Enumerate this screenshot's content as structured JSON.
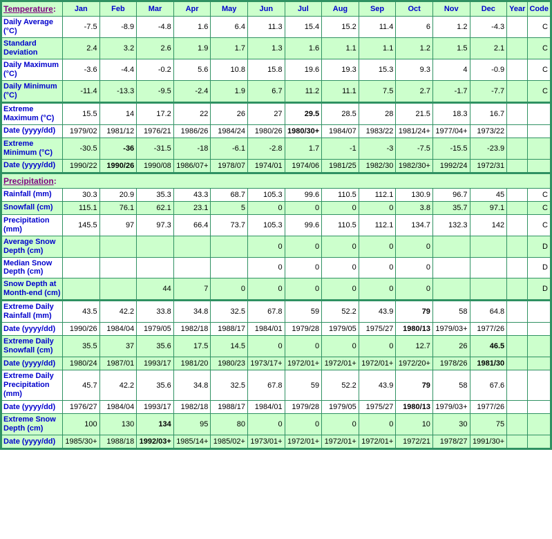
{
  "colors": {
    "cell_green": "#ccffcc",
    "grid_green": "#2f9162",
    "label_blue": "#0000cc",
    "section_purple": "#800080"
  },
  "header": {
    "section_title": "Temperature",
    "section_colon": ":",
    "months": [
      "Jan",
      "Feb",
      "Mar",
      "Apr",
      "May",
      "Jun",
      "Jul",
      "Aug",
      "Sep",
      "Oct",
      "Nov",
      "Dec"
    ],
    "year_label": "Year",
    "code_label": "Code"
  },
  "rows": [
    {
      "label": "Daily Average (°C)",
      "shade": "white",
      "thick": false,
      "values": [
        "-7.5",
        "-8.9",
        "-4.8",
        "1.6",
        "6.4",
        "11.3",
        "15.4",
        "15.2",
        "11.4",
        "6",
        "1.2",
        "-4.3"
      ],
      "year": "",
      "code": "C",
      "bold_cols": []
    },
    {
      "label": "Standard Deviation",
      "shade": "green",
      "thick": false,
      "values": [
        "2.4",
        "3.2",
        "2.6",
        "1.9",
        "1.7",
        "1.3",
        "1.6",
        "1.1",
        "1.1",
        "1.2",
        "1.5",
        "2.1"
      ],
      "year": "",
      "code": "C",
      "bold_cols": []
    },
    {
      "label": "Daily Maximum (°C)",
      "shade": "white",
      "thick": false,
      "values": [
        "-3.6",
        "-4.4",
        "-0.2",
        "5.6",
        "10.8",
        "15.8",
        "19.6",
        "19.3",
        "15.3",
        "9.3",
        "4",
        "-0.9"
      ],
      "year": "",
      "code": "C",
      "bold_cols": []
    },
    {
      "label": "Daily Minimum (°C)",
      "shade": "green",
      "thick": false,
      "values": [
        "-11.4",
        "-13.3",
        "-9.5",
        "-2.4",
        "1.9",
        "6.7",
        "11.2",
        "11.1",
        "7.5",
        "2.7",
        "-1.7",
        "-7.7"
      ],
      "year": "",
      "code": "C",
      "bold_cols": []
    },
    {
      "label": "Extreme Maximum (°C)",
      "shade": "white",
      "thick": true,
      "values": [
        "15.5",
        "14",
        "17.2",
        "22",
        "26",
        "27",
        "29.5",
        "28.5",
        "28",
        "21.5",
        "18.3",
        "16.7"
      ],
      "year": "",
      "code": "",
      "bold_cols": [
        6
      ]
    },
    {
      "label": "Date (yyyy/dd)",
      "shade": "white",
      "thick": false,
      "values": [
        "1979/02",
        "1981/12",
        "1976/21",
        "1986/26",
        "1984/24",
        "1980/26",
        "1980/30+",
        "1984/07",
        "1983/22",
        "1981/24+",
        "1977/04+",
        "1973/22"
      ],
      "year": "",
      "code": "",
      "bold_cols": [
        6
      ]
    },
    {
      "label": "Extreme Minimum (°C)",
      "shade": "green",
      "thick": false,
      "values": [
        "-30.5",
        "-36",
        "-31.5",
        "-18",
        "-6.1",
        "-2.8",
        "1.7",
        "-1",
        "-3",
        "-7.5",
        "-15.5",
        "-23.9"
      ],
      "year": "",
      "code": "",
      "bold_cols": [
        1
      ]
    },
    {
      "label": "Date (yyyy/dd)",
      "shade": "green",
      "thick": false,
      "values": [
        "1990/22",
        "1990/26",
        "1990/08",
        "1986/07+",
        "1978/07",
        "1974/01",
        "1974/06",
        "1981/25",
        "1982/30",
        "1982/30+",
        "1992/24",
        "1972/31"
      ],
      "year": "",
      "code": "",
      "bold_cols": [
        1
      ]
    },
    {
      "type": "section",
      "title": "Precipitation",
      "colon": ":",
      "shade": "green",
      "thick": true
    },
    {
      "label": "Rainfall (mm)",
      "shade": "white",
      "thick": false,
      "values": [
        "30.3",
        "20.9",
        "35.3",
        "43.3",
        "68.7",
        "105.3",
        "99.6",
        "110.5",
        "112.1",
        "130.9",
        "96.7",
        "45"
      ],
      "year": "",
      "code": "C",
      "bold_cols": []
    },
    {
      "label": "Snowfall (cm)",
      "shade": "green",
      "thick": false,
      "values": [
        "115.1",
        "76.1",
        "62.1",
        "23.1",
        "5",
        "0",
        "0",
        "0",
        "0",
        "3.8",
        "35.7",
        "97.1"
      ],
      "year": "",
      "code": "C",
      "bold_cols": []
    },
    {
      "label": "Precipitation (mm)",
      "shade": "white",
      "thick": false,
      "values": [
        "145.5",
        "97",
        "97.3",
        "66.4",
        "73.7",
        "105.3",
        "99.6",
        "110.5",
        "112.1",
        "134.7",
        "132.3",
        "142"
      ],
      "year": "",
      "code": "C",
      "bold_cols": []
    },
    {
      "label": "Average Snow Depth (cm)",
      "shade": "green",
      "thick": false,
      "values": [
        "",
        "",
        "",
        "",
        "",
        "0",
        "0",
        "0",
        "0",
        "0",
        "",
        ""
      ],
      "year": "",
      "code": "D",
      "bold_cols": []
    },
    {
      "label": "Median Snow Depth (cm)",
      "shade": "white",
      "thick": false,
      "values": [
        "",
        "",
        "",
        "",
        "",
        "0",
        "0",
        "0",
        "0",
        "0",
        "",
        ""
      ],
      "year": "",
      "code": "D",
      "bold_cols": []
    },
    {
      "label": "Snow Depth at Month-end (cm)",
      "shade": "green",
      "thick": false,
      "values": [
        "",
        "",
        "44",
        "7",
        "0",
        "0",
        "0",
        "0",
        "0",
        "0",
        "",
        ""
      ],
      "year": "",
      "code": "D",
      "bold_cols": []
    },
    {
      "label": "Extreme Daily Rainfall (mm)",
      "shade": "white",
      "thick": true,
      "values": [
        "43.5",
        "42.2",
        "33.8",
        "34.8",
        "32.5",
        "67.8",
        "59",
        "52.2",
        "43.9",
        "79",
        "58",
        "64.8"
      ],
      "year": "",
      "code": "",
      "bold_cols": [
        9
      ]
    },
    {
      "label": "Date (yyyy/dd)",
      "shade": "white",
      "thick": false,
      "values": [
        "1990/26",
        "1984/04",
        "1979/05",
        "1982/18",
        "1988/17",
        "1984/01",
        "1979/28",
        "1979/05",
        "1975/27",
        "1980/13",
        "1979/03+",
        "1977/26"
      ],
      "year": "",
      "code": "",
      "bold_cols": [
        9
      ]
    },
    {
      "label": "Extreme Daily Snowfall (cm)",
      "shade": "green",
      "thick": false,
      "values": [
        "35.5",
        "37",
        "35.6",
        "17.5",
        "14.5",
        "0",
        "0",
        "0",
        "0",
        "12.7",
        "26",
        "46.5"
      ],
      "year": "",
      "code": "",
      "bold_cols": [
        11
      ]
    },
    {
      "label": "Date (yyyy/dd)",
      "shade": "green",
      "thick": false,
      "values": [
        "1980/24",
        "1987/01",
        "1993/17",
        "1981/20",
        "1980/23",
        "1973/17+",
        "1972/01+",
        "1972/01+",
        "1972/01+",
        "1972/20+",
        "1978/26",
        "1981/30"
      ],
      "year": "",
      "code": "",
      "bold_cols": [
        11
      ]
    },
    {
      "label": "Extreme Daily Precipitation (mm)",
      "shade": "white",
      "thick": false,
      "values": [
        "45.7",
        "42.2",
        "35.6",
        "34.8",
        "32.5",
        "67.8",
        "59",
        "52.2",
        "43.9",
        "79",
        "58",
        "67.6"
      ],
      "year": "",
      "code": "",
      "bold_cols": [
        9
      ]
    },
    {
      "label": "Date (yyyy/dd)",
      "shade": "white",
      "thick": false,
      "values": [
        "1976/27",
        "1984/04",
        "1993/17",
        "1982/18",
        "1988/17",
        "1984/01",
        "1979/28",
        "1979/05",
        "1975/27",
        "1980/13",
        "1979/03+",
        "1977/26"
      ],
      "year": "",
      "code": "",
      "bold_cols": [
        9
      ]
    },
    {
      "label": "Extreme Snow Depth (cm)",
      "shade": "green",
      "thick": false,
      "values": [
        "100",
        "130",
        "134",
        "95",
        "80",
        "0",
        "0",
        "0",
        "0",
        "10",
        "30",
        "75"
      ],
      "year": "",
      "code": "",
      "bold_cols": [
        2
      ]
    },
    {
      "label": "Date (yyyy/dd)",
      "shade": "green",
      "thick": false,
      "values": [
        "1985/30+",
        "1988/18",
        "1992/03+",
        "1985/14+",
        "1985/02+",
        "1973/01+",
        "1972/01+",
        "1972/01+",
        "1972/01+",
        "1972/21",
        "1978/27",
        "1991/30+"
      ],
      "year": "",
      "code": "",
      "bold_cols": [
        2
      ]
    }
  ]
}
